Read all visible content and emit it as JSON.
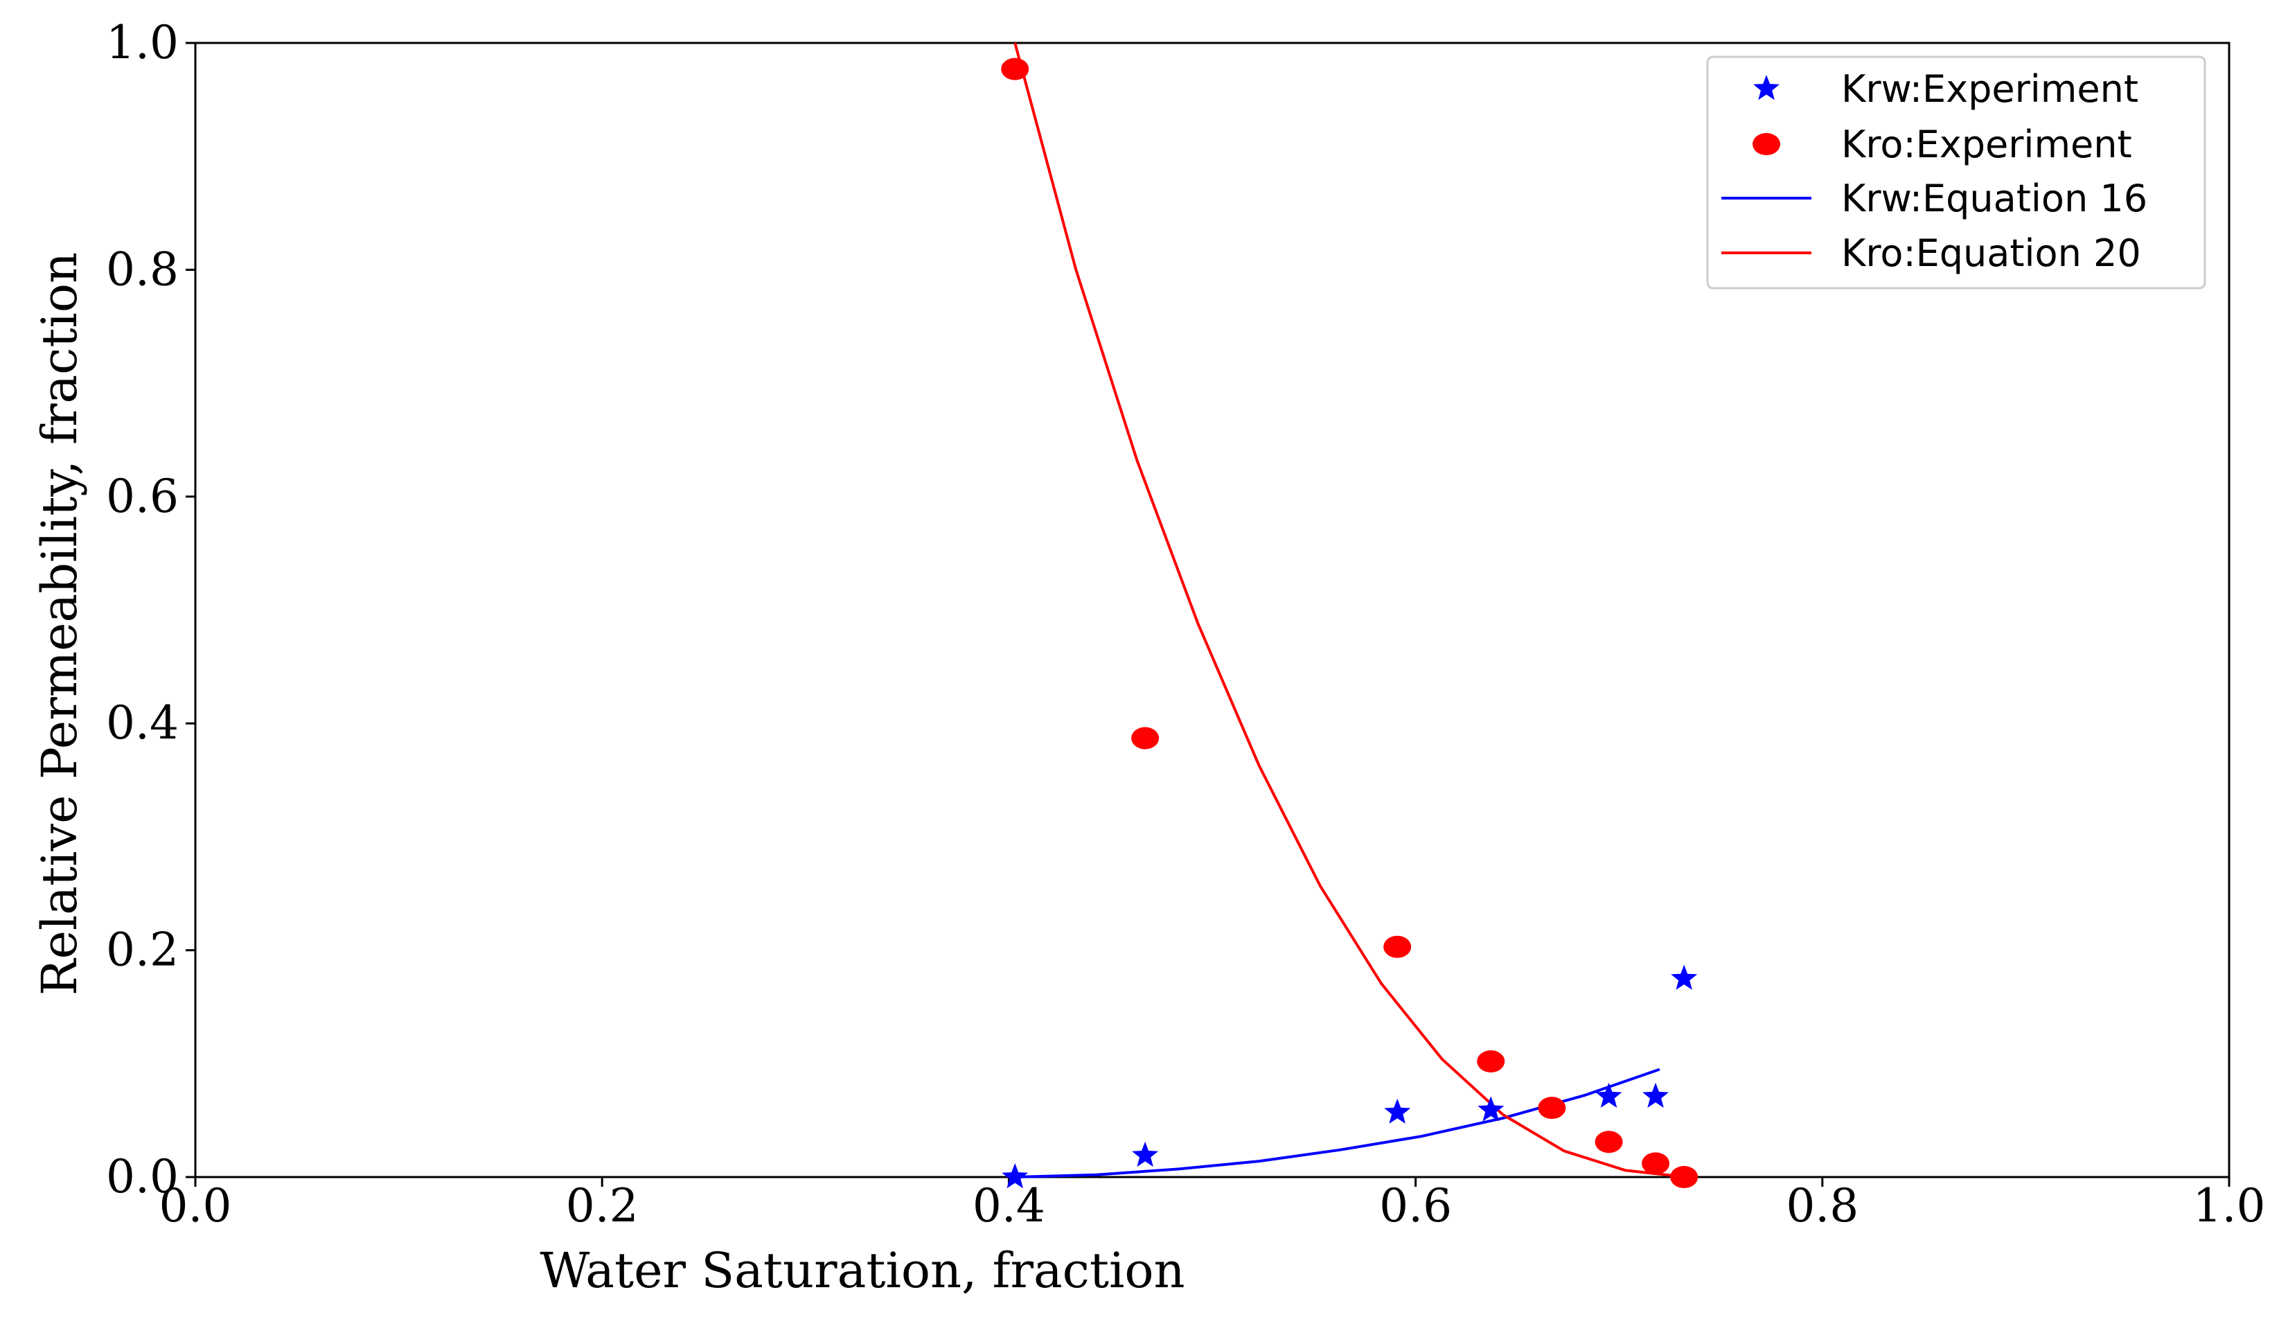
{
  "chart_data": {
    "type": "scatter",
    "title": "",
    "xlabel": "Water Saturation, fraction",
    "ylabel": "Relative Permeability, fraction",
    "xlim": [
      0.0,
      1.0
    ],
    "ylim": [
      0.0,
      1.0
    ],
    "xticks": [
      {
        "value": 0.0,
        "label": "0.0"
      },
      {
        "value": 0.2,
        "label": "0.2"
      },
      {
        "value": 0.4,
        "label": "0.4"
      },
      {
        "value": 0.6,
        "label": "0.6"
      },
      {
        "value": 0.8,
        "label": "0.8"
      },
      {
        "value": 1.0,
        "label": "1.0"
      }
    ],
    "yticks": [
      {
        "value": 0.0,
        "label": "0.0"
      },
      {
        "value": 0.2,
        "label": "0.2"
      },
      {
        "value": 0.4,
        "label": "0.4"
      },
      {
        "value": 0.6,
        "label": "0.6"
      },
      {
        "value": 0.8,
        "label": "0.8"
      },
      {
        "value": 1.0,
        "label": "1.0"
      }
    ],
    "grid": false,
    "legend_position": "top-right",
    "series": [
      {
        "name": "Krw:Experiment",
        "kind": "marker",
        "marker": "star",
        "color": "#0000ff",
        "x": [
          0.403,
          0.467,
          0.591,
          0.637,
          0.695,
          0.718,
          0.732
        ],
        "y": [
          0.0,
          0.019,
          0.057,
          0.059,
          0.071,
          0.071,
          0.175
        ]
      },
      {
        "name": "Kro:Experiment",
        "kind": "marker",
        "marker": "circle",
        "color": "#ff0000",
        "x": [
          0.403,
          0.467,
          0.591,
          0.637,
          0.667,
          0.695,
          0.718,
          0.732
        ],
        "y": [
          0.977,
          0.387,
          0.203,
          0.102,
          0.061,
          0.031,
          0.012,
          0.0
        ]
      },
      {
        "name": "Krw:Equation 16",
        "kind": "line",
        "color": "#0000ff",
        "x": [
          0.403,
          0.443,
          0.483,
          0.523,
          0.563,
          0.603,
          0.643,
          0.683,
          0.72
        ],
        "y": [
          0.0,
          0.002,
          0.007,
          0.014,
          0.024,
          0.036,
          0.052,
          0.072,
          0.095
        ]
      },
      {
        "name": "Kro:Equation 20",
        "kind": "line",
        "color": "#ff0000",
        "x": [
          0.403,
          0.433,
          0.463,
          0.493,
          0.523,
          0.553,
          0.583,
          0.613,
          0.643,
          0.673,
          0.703,
          0.733
        ],
        "y": [
          1.0,
          0.8,
          0.632,
          0.488,
          0.363,
          0.257,
          0.171,
          0.104,
          0.055,
          0.023,
          0.006,
          0.0
        ]
      }
    ]
  }
}
